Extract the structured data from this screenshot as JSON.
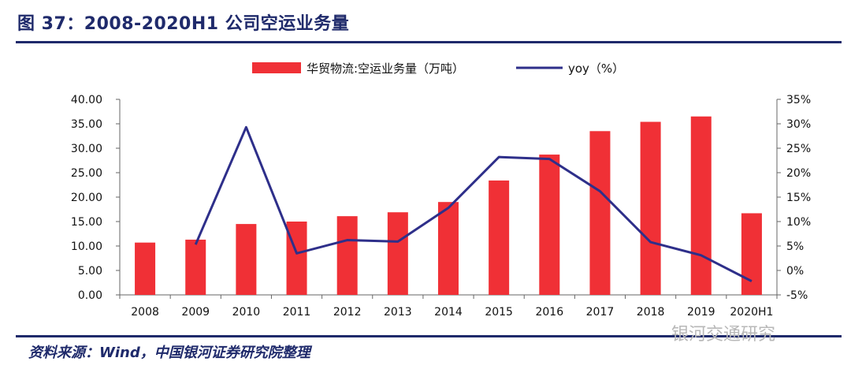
{
  "header": {
    "title": "图 37：2008-2020H1 公司空运业务量"
  },
  "footer": {
    "source": "资料来源：Wind，中国银河证券研究院整理",
    "watermark": "银河交通研究"
  },
  "colors": {
    "bar": "#f03036",
    "line": "#2e2f8a",
    "axis": "#666666",
    "rule": "#1f2a6b"
  },
  "chart_data": {
    "type": "bar",
    "categories": [
      "2008",
      "2009",
      "2010",
      "2011",
      "2012",
      "2013",
      "2014",
      "2015",
      "2016",
      "2017",
      "2018",
      "2019",
      "2020H1"
    ],
    "series": [
      {
        "name": "华贸物流:空运业务量（万吨）",
        "type": "bar",
        "axis": "left",
        "values": [
          10.7,
          11.3,
          14.5,
          15.0,
          16.1,
          16.9,
          19.0,
          23.4,
          28.7,
          33.5,
          35.4,
          36.5,
          16.7
        ]
      },
      {
        "name": "yoy（%）",
        "type": "line",
        "axis": "right",
        "values": [
          null,
          5.3,
          29.3,
          3.5,
          6.2,
          5.9,
          12.8,
          23.2,
          22.8,
          16.2,
          5.8,
          3.1,
          -2.2
        ]
      }
    ],
    "y_left": {
      "ylim": [
        0,
        40
      ],
      "ticks": [
        "0.00",
        "5.00",
        "10.00",
        "15.00",
        "20.00",
        "25.00",
        "30.00",
        "35.00",
        "40.00"
      ]
    },
    "y_right": {
      "ylim": [
        -5,
        35
      ],
      "ticks": [
        "-5%",
        "0%",
        "5%",
        "10%",
        "15%",
        "20%",
        "25%",
        "30%",
        "35%"
      ]
    },
    "legend": "top-center",
    "grid": false
  }
}
